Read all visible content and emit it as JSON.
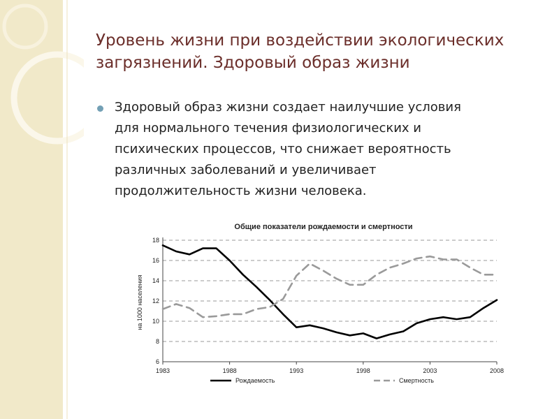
{
  "slide": {
    "title_lines": [
      "Уровень жизни при воздействии экологических",
      "загрязнений. Здоровый образ жизни"
    ],
    "body_lines": [
      "Здоровый образ жизни создает наилучшие условия",
      "для нормального течения физиологических и",
      "психических процессов, что снижает вероятность",
      "различных заболеваний и увеличивает",
      "продолжительность жизни человека."
    ]
  },
  "colors": {
    "title": "#6b2e2a",
    "bullet": "#73a0b5",
    "band": "#f1e9c9",
    "series_births": "#000000",
    "series_deaths": "#9a9a9a"
  },
  "chart_data": {
    "type": "line",
    "title": "Общие показатели рождаемости и смертности",
    "xlabel": "",
    "ylabel": "на 1000 населения",
    "x": [
      1983,
      1984,
      1985,
      1986,
      1987,
      1988,
      1989,
      1990,
      1991,
      1992,
      1993,
      1994,
      1995,
      1996,
      1997,
      1998,
      1999,
      2000,
      2001,
      2002,
      2003,
      2004,
      2005,
      2006,
      2007,
      2008
    ],
    "xticks": [
      1983,
      1988,
      1993,
      1998,
      2003,
      2008
    ],
    "yticks": [
      6,
      8,
      10,
      12,
      14,
      16,
      18
    ],
    "xlim": [
      1983,
      2008
    ],
    "ylim": [
      6,
      18
    ],
    "grid": true,
    "legend": "bottom",
    "series": [
      {
        "name": "Рождаемость",
        "style": "solid",
        "values": [
          17.5,
          16.9,
          16.6,
          17.2,
          17.2,
          16.0,
          14.6,
          13.4,
          12.1,
          10.7,
          9.4,
          9.6,
          9.3,
          8.9,
          8.6,
          8.8,
          8.3,
          8.7,
          9.0,
          9.8,
          10.2,
          10.4,
          10.2,
          10.4,
          11.3,
          12.1
        ]
      },
      {
        "name": "Смертность",
        "style": "dashed",
        "values": [
          11.2,
          11.7,
          11.3,
          10.4,
          10.5,
          10.7,
          10.7,
          11.2,
          11.4,
          12.2,
          14.5,
          15.7,
          15.0,
          14.2,
          13.6,
          13.6,
          14.6,
          15.3,
          15.7,
          16.2,
          16.4,
          16.1,
          16.1,
          15.3,
          14.6,
          14.6
        ]
      }
    ]
  }
}
